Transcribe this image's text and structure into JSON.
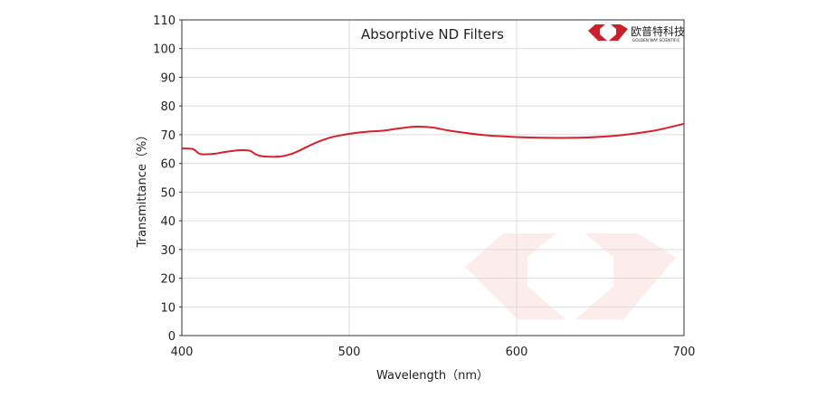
{
  "chart_data": {
    "type": "line",
    "title": "Absorptive ND Filters",
    "xlabel": "Wavelength（nm）",
    "ylabel": "Transmittance（%）",
    "xlim": [
      400,
      700
    ],
    "ylim": [
      0,
      110
    ],
    "x_ticks": [
      400,
      500,
      600,
      700
    ],
    "y_ticks": [
      0,
      10,
      20,
      30,
      40,
      50,
      60,
      70,
      80,
      90,
      100,
      110
    ],
    "grid": true,
    "series": [
      {
        "color": "#d8202a",
        "x": [
          400,
          406,
          408,
          410,
          412,
          415,
          420,
          425,
          430,
          435,
          440,
          442,
          444,
          447,
          450,
          455,
          460,
          465,
          470,
          480,
          490,
          500,
          510,
          520,
          530,
          540,
          550,
          560,
          580,
          600,
          620,
          640,
          660,
          680,
          690,
          700
        ],
        "y": [
          65.2,
          65.1,
          64.5,
          63.5,
          63.2,
          63.2,
          63.4,
          63.9,
          64.3,
          64.6,
          64.5,
          64.0,
          63.2,
          62.6,
          62.4,
          62.3,
          62.5,
          63.2,
          64.4,
          67.2,
          69.2,
          70.3,
          71.0,
          71.4,
          72.2,
          72.8,
          72.5,
          71.4,
          69.9,
          69.2,
          68.9,
          69.0,
          69.7,
          71.2,
          72.4,
          73.8
        ]
      }
    ]
  },
  "logo": {
    "name": "欧普特科技",
    "subtitle": "GOLDEN WAY SCIENTIFIC",
    "color": "#c9202a"
  },
  "watermark": {
    "color": "#e53a3a"
  }
}
